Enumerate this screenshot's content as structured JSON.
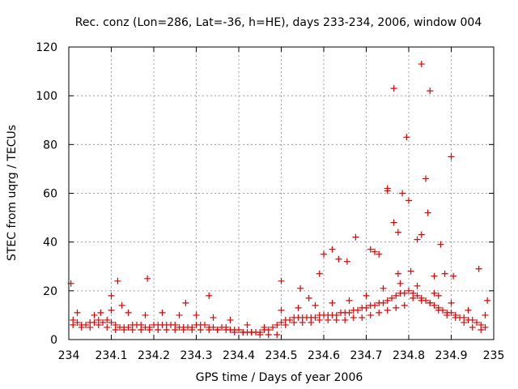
{
  "chart_data": {
    "type": "scatter",
    "title": "Rec. conz (Lon=286, Lat=-36, h=HE), days 233-234, 2006, window 004",
    "xlabel": "GPS time / Days of year 2006",
    "ylabel": "STEC from uqrg / TECUs",
    "xlim": [
      234,
      235
    ],
    "ylim": [
      0,
      120
    ],
    "x_ticks": [
      "234",
      "234.1",
      "234.2",
      "234.3",
      "234.4",
      "234.5",
      "234.6",
      "234.7",
      "234.8",
      "234.9",
      "235"
    ],
    "y_ticks": [
      "0",
      "20",
      "40",
      "60",
      "80",
      "100",
      "120"
    ],
    "grid": true,
    "marker": "+",
    "color": "#e00000",
    "series": [
      {
        "name": "STEC",
        "x": [
          234.01,
          234.02,
          234.03,
          234.04,
          234.05,
          234.06,
          234.07,
          234.08,
          234.09,
          234.1,
          234.11,
          234.12,
          234.13,
          234.14,
          234.15,
          234.16,
          234.17,
          234.18,
          234.19,
          234.2,
          234.21,
          234.22,
          234.23,
          234.24,
          234.25,
          234.26,
          234.27,
          234.28,
          234.29,
          234.3,
          234.31,
          234.32,
          234.33,
          234.34,
          234.35,
          234.36,
          234.37,
          234.38,
          234.39,
          234.4,
          234.41,
          234.42,
          234.43,
          234.44,
          234.45,
          234.46,
          234.47,
          234.48,
          234.49,
          234.5,
          234.51,
          234.52,
          234.53,
          234.54,
          234.55,
          234.56,
          234.57,
          234.58,
          234.59,
          234.6,
          234.61,
          234.62,
          234.63,
          234.64,
          234.65,
          234.66,
          234.67,
          234.68,
          234.69,
          234.7,
          234.71,
          234.72,
          234.73,
          234.74,
          234.75,
          234.76,
          234.77,
          234.78,
          234.79,
          234.8,
          234.81,
          234.82,
          234.83,
          234.84,
          234.85,
          234.86,
          234.87,
          234.88,
          234.89,
          234.9,
          234.91,
          234.92,
          234.93,
          234.94,
          234.95,
          234.96,
          234.97,
          234.98,
          234.01,
          234.03,
          234.05,
          234.07,
          234.09,
          234.11,
          234.13,
          234.15,
          234.17,
          234.19,
          234.21,
          234.23,
          234.25,
          234.27,
          234.29,
          234.31,
          234.33,
          234.35,
          234.37,
          234.39,
          234.41,
          234.43,
          234.45,
          234.47,
          234.49,
          234.51,
          234.53,
          234.55,
          234.57,
          234.59,
          234.61,
          234.63,
          234.65,
          234.67,
          234.69,
          234.71,
          234.73,
          234.75,
          234.77,
          234.79,
          234.81,
          234.83,
          234.85,
          234.87,
          234.89,
          234.91,
          234.93,
          234.95,
          234.97,
          234.02,
          234.06,
          234.1,
          234.14,
          234.18,
          234.22,
          234.26,
          234.3,
          234.34,
          234.38,
          234.42,
          234.46,
          234.5,
          234.54,
          234.58,
          234.62,
          234.66,
          234.7,
          234.74,
          234.78,
          234.82,
          234.86,
          234.9,
          234.94,
          234.98,
          234.005,
          234.075,
          234.1,
          234.115,
          234.125,
          234.185,
          234.275,
          234.33,
          234.5,
          234.545,
          234.565,
          234.59,
          234.6,
          234.62,
          234.635,
          234.655,
          234.675,
          234.71,
          234.72,
          234.73,
          234.75,
          234.75,
          234.765,
          234.765,
          234.775,
          234.775,
          234.785,
          234.795,
          234.8,
          234.805,
          234.82,
          234.83,
          234.83,
          234.84,
          234.845,
          234.85,
          234.86,
          234.87,
          234.875,
          234.885,
          234.9,
          234.905,
          234.965,
          234.985
        ],
        "y": [
          8,
          7,
          6,
          6,
          7,
          7,
          8,
          7,
          8,
          7,
          6,
          5,
          5,
          5,
          6,
          6,
          6,
          5,
          5,
          6,
          6,
          6,
          6,
          6,
          6,
          5,
          5,
          5,
          5,
          6,
          6,
          6,
          5,
          5,
          4,
          5,
          5,
          4,
          4,
          4,
          3,
          3,
          3,
          3,
          3,
          4,
          4,
          5,
          6,
          7,
          8,
          8,
          9,
          9,
          9,
          9,
          9,
          9,
          10,
          10,
          10,
          10,
          10,
          11,
          11,
          11,
          12,
          12,
          13,
          13,
          14,
          14,
          15,
          15,
          16,
          17,
          18,
          19,
          19,
          20,
          19,
          18,
          17,
          16,
          15,
          14,
          13,
          12,
          11,
          11,
          10,
          9,
          9,
          8,
          8,
          7,
          6,
          5,
          6,
          5,
          5,
          6,
          5,
          4,
          4,
          4,
          4,
          4,
          4,
          4,
          4,
          4,
          4,
          4,
          4,
          4,
          4,
          3,
          3,
          3,
          2,
          2,
          2,
          6,
          7,
          7,
          7,
          8,
          8,
          8,
          8,
          9,
          9,
          10,
          11,
          12,
          13,
          14,
          17,
          16,
          15,
          12,
          10,
          9,
          7,
          5,
          4,
          11,
          10,
          12,
          11,
          10,
          11,
          10,
          10,
          9,
          8,
          6,
          5,
          12,
          13,
          14,
          15,
          16,
          18,
          21,
          23,
          22,
          19,
          15,
          12,
          10,
          23,
          11,
          18,
          24,
          14,
          25,
          15,
          18,
          24,
          21,
          17,
          27,
          35,
          37,
          33,
          32,
          42,
          37,
          36,
          35,
          62,
          61,
          103,
          48,
          44,
          27,
          60,
          83,
          57,
          28,
          41,
          113,
          43,
          66,
          52,
          102,
          26,
          18,
          39,
          27,
          75,
          26,
          29,
          16
        ]
      }
    ]
  }
}
